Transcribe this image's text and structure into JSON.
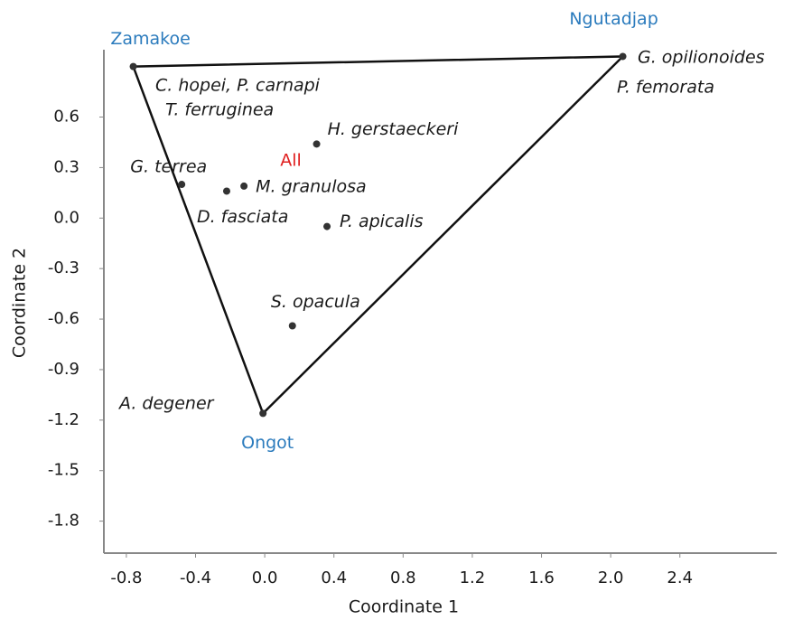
{
  "chart_data": {
    "type": "scatter",
    "x_label": "Coordinate 1",
    "y_label": "Coordinate 2",
    "xlim": [
      -0.93,
      2.96
    ],
    "ylim": [
      -1.99,
      1.0
    ],
    "xticks": [
      -0.8,
      -0.4,
      {
        "value": 0,
        "label": "0.0"
      },
      0.4,
      0.8,
      1.2,
      1.6,
      {
        "value": 2,
        "label": "2.0"
      },
      2.4
    ],
    "yticks": [
      0.6,
      0.3,
      {
        "value": 0,
        "label": "0.0"
      },
      -0.3,
      -0.6,
      -0.9,
      -1.2,
      -1.5,
      -1.8
    ],
    "point_color": "#333333",
    "line_color": "#111111",
    "points": [
      {
        "label": "Zamakoe",
        "x": -0.76,
        "y": 0.9,
        "label_color": "#2b7bbd"
      },
      {
        "label": "Ngutadjap",
        "x": 2.07,
        "y": 0.96,
        "label_color": "#2b7bbd"
      },
      {
        "label": "Ongot",
        "x": -0.01,
        "y": -1.16,
        "label_color": "#2b7bbd"
      },
      {
        "label": "H. gerstaeckeri",
        "x": 0.3,
        "y": 0.44,
        "label_color": "#1a1a1a"
      },
      {
        "label": "G. terrea",
        "x": -0.48,
        "y": 0.2,
        "label_color": "#1a1a1a"
      },
      {
        "label": "D. fasciata",
        "x": -0.22,
        "y": 0.16,
        "label_color": "#1a1a1a"
      },
      {
        "label": "M. granulosa",
        "x": -0.12,
        "y": 0.19,
        "label_color": "#1a1a1a"
      },
      {
        "label": "P. apicalis",
        "x": 0.36,
        "y": -0.05,
        "label_color": "#1a1a1a"
      },
      {
        "label": "S. opacula",
        "x": 0.16,
        "y": -0.64,
        "label_color": "#1a1a1a"
      }
    ],
    "annotations": [
      {
        "text": "C. hopei, P. carnapi",
        "color": "#1a1a1a"
      },
      {
        "text": "T. ferruginea",
        "color": "#1a1a1a"
      },
      {
        "text": "G. opilionoides",
        "color": "#1a1a1a"
      },
      {
        "text": "P. femorata",
        "color": "#1a1a1a"
      },
      {
        "text": "A. degener",
        "color": "#1a1a1a"
      },
      {
        "text": "All",
        "color": "#e02020"
      }
    ]
  }
}
